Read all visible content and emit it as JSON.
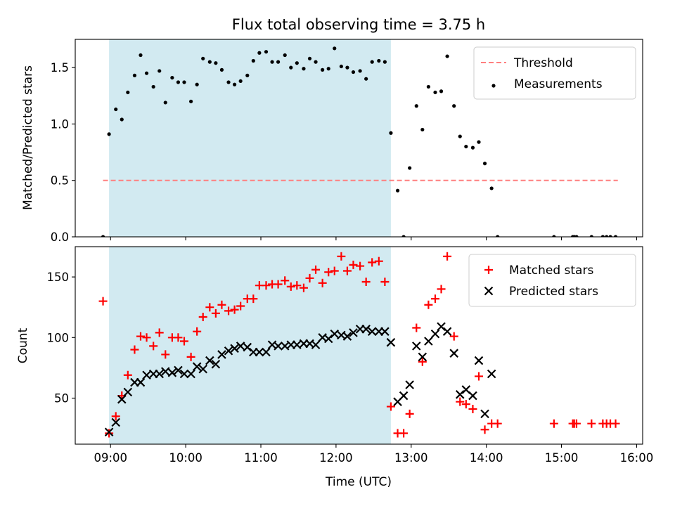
{
  "chart_data": [
    {
      "type": "scatter",
      "title": "Flux total observing time = 3.75 h",
      "ylabel": "Matched/Predicted stars",
      "xlabel": "",
      "x_unit": "hours UTC",
      "xlim": [
        8.53,
        16.08
      ],
      "ylim": [
        0,
        1.75
      ],
      "yticks": [
        0.0,
        0.5,
        1.0,
        1.5
      ],
      "ytick_labels": [
        "0.0",
        "0.5",
        "1.0",
        "1.5"
      ],
      "shaded_interval": [
        8.98,
        12.73
      ],
      "shaded_color": "#add8e6",
      "legend_position": "top-right",
      "threshold": {
        "name": "Threshold",
        "y": 0.5,
        "x": [
          8.9,
          15.75
        ],
        "color": "#ff7f7f"
      },
      "series": [
        {
          "name": "Measurements",
          "marker": "dot",
          "color": "#000000",
          "x": [
            8.9,
            8.98,
            9.07,
            9.15,
            9.23,
            9.32,
            9.4,
            9.48,
            9.57,
            9.65,
            9.73,
            9.82,
            9.9,
            9.98,
            10.07,
            10.15,
            10.23,
            10.32,
            10.4,
            10.48,
            10.57,
            10.65,
            10.73,
            10.82,
            10.9,
            10.98,
            11.07,
            11.15,
            11.23,
            11.32,
            11.4,
            11.48,
            11.57,
            11.65,
            11.73,
            11.82,
            11.9,
            11.98,
            12.07,
            12.15,
            12.23,
            12.32,
            12.4,
            12.48,
            12.57,
            12.65,
            12.73,
            12.82,
            12.9,
            12.98,
            13.07,
            13.15,
            13.23,
            13.32,
            13.4,
            13.48,
            13.57,
            13.65,
            13.73,
            13.82,
            13.9,
            13.98,
            14.07,
            14.15,
            14.9,
            15.15,
            15.17,
            15.2,
            15.4,
            15.55,
            15.6,
            15.65,
            15.72
          ],
          "y": [
            0.0,
            0.91,
            1.13,
            1.04,
            1.28,
            1.43,
            1.61,
            1.45,
            1.33,
            1.47,
            1.19,
            1.41,
            1.37,
            1.37,
            1.2,
            1.35,
            1.58,
            1.55,
            1.54,
            1.48,
            1.37,
            1.35,
            1.38,
            1.43,
            1.56,
            1.63,
            1.64,
            1.55,
            1.55,
            1.61,
            1.5,
            1.54,
            1.49,
            1.58,
            1.55,
            1.48,
            1.49,
            1.67,
            1.51,
            1.5,
            1.46,
            1.47,
            1.4,
            1.55,
            1.56,
            1.55,
            0.92,
            0.41,
            0.0,
            0.61,
            1.16,
            0.95,
            1.33,
            1.28,
            1.29,
            1.6,
            1.16,
            0.89,
            0.8,
            0.79,
            0.84,
            0.65,
            0.43,
            0.0,
            0.0,
            0.0,
            0.0,
            0.0,
            0.0,
            0.0,
            0.0,
            0.0,
            0.0
          ]
        }
      ]
    },
    {
      "type": "scatter",
      "title": "",
      "ylabel": "Count",
      "xlabel": "Time (UTC)",
      "x_unit": "hours UTC",
      "xlim": [
        8.53,
        16.08
      ],
      "ylim": [
        12,
        175
      ],
      "xticks": [
        9,
        10,
        11,
        12,
        13,
        14,
        15,
        16
      ],
      "xtick_labels": [
        "09:00",
        "10:00",
        "11:00",
        "12:00",
        "13:00",
        "14:00",
        "15:00",
        "16:00"
      ],
      "yticks": [
        50,
        100,
        150
      ],
      "ytick_labels": [
        "50",
        "100",
        "150"
      ],
      "shaded_interval": [
        8.98,
        12.73
      ],
      "shaded_color": "#add8e6",
      "legend_position": "top-right",
      "series": [
        {
          "name": "Matched stars",
          "marker": "plus",
          "color": "#ff0000",
          "x": [
            8.9,
            8.98,
            9.07,
            9.15,
            9.23,
            9.32,
            9.4,
            9.48,
            9.57,
            9.65,
            9.73,
            9.82,
            9.9,
            9.98,
            10.07,
            10.15,
            10.23,
            10.32,
            10.4,
            10.48,
            10.57,
            10.65,
            10.73,
            10.82,
            10.9,
            10.98,
            11.07,
            11.15,
            11.23,
            11.32,
            11.4,
            11.48,
            11.57,
            11.65,
            11.73,
            11.82,
            11.9,
            11.98,
            12.07,
            12.15,
            12.23,
            12.32,
            12.4,
            12.48,
            12.57,
            12.65,
            12.73,
            12.82,
            12.9,
            12.98,
            13.07,
            13.15,
            13.23,
            13.32,
            13.4,
            13.48,
            13.57,
            13.65,
            13.73,
            13.82,
            13.9,
            13.98,
            14.07,
            14.15,
            14.9,
            15.15,
            15.17,
            15.2,
            15.4,
            15.55,
            15.6,
            15.65,
            15.72
          ],
          "y": [
            130,
            21,
            35,
            52,
            69,
            90,
            101,
            100,
            93,
            104,
            86,
            100,
            100,
            97,
            84,
            105,
            117,
            125,
            120,
            127,
            122,
            123,
            126,
            132,
            132,
            143,
            143,
            144,
            144,
            147,
            142,
            143,
            141,
            149,
            156,
            145,
            154,
            155,
            167,
            155,
            160,
            159,
            146,
            162,
            163,
            146,
            43,
            21,
            21,
            37,
            108,
            80,
            127,
            132,
            140,
            167,
            101,
            47,
            45,
            41,
            68,
            24,
            29,
            29,
            29,
            29,
            29,
            29,
            29,
            29,
            29,
            29,
            29
          ]
        },
        {
          "name": "Predicted stars",
          "marker": "x",
          "color": "#000000",
          "x": [
            8.98,
            9.07,
            9.15,
            9.23,
            9.32,
            9.4,
            9.48,
            9.57,
            9.65,
            9.73,
            9.82,
            9.9,
            9.98,
            10.07,
            10.15,
            10.23,
            10.32,
            10.4,
            10.48,
            10.57,
            10.65,
            10.73,
            10.82,
            10.9,
            10.98,
            11.07,
            11.15,
            11.23,
            11.32,
            11.4,
            11.48,
            11.57,
            11.65,
            11.73,
            11.82,
            11.9,
            11.98,
            12.07,
            12.15,
            12.23,
            12.32,
            12.4,
            12.48,
            12.57,
            12.65,
            12.73,
            12.82,
            12.9,
            12.98,
            13.07,
            13.15,
            13.23,
            13.32,
            13.4,
            13.48,
            13.57,
            13.65,
            13.73,
            13.82,
            13.9,
            13.98,
            14.07
          ],
          "y": [
            22,
            30,
            49,
            55,
            63,
            63,
            69,
            70,
            70,
            72,
            71,
            73,
            70,
            70,
            76,
            74,
            81,
            78,
            86,
            89,
            91,
            93,
            92,
            88,
            88,
            88,
            94,
            93,
            93,
            94,
            94,
            95,
            95,
            94,
            100,
            99,
            103,
            102,
            101,
            104,
            107,
            107,
            105,
            105,
            105,
            96,
            47,
            52,
            61,
            93,
            84,
            97,
            103,
            109,
            105,
            87,
            53,
            57,
            52,
            81,
            37,
            70
          ]
        }
      ]
    }
  ]
}
